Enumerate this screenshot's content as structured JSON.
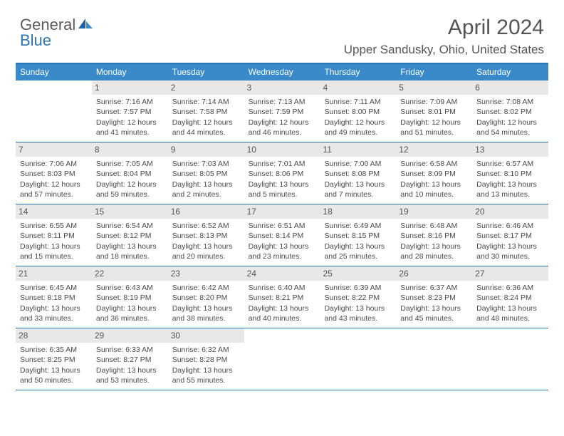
{
  "logo": {
    "part1": "General",
    "part2": "Blue"
  },
  "title": "April 2024",
  "subtitle": "Upper Sandusky, Ohio, United States",
  "colors": {
    "accent": "#2e75b6",
    "header_bg": "#3a8ac9",
    "daynum_bg": "#e8e8e8",
    "text": "#4a4a4a",
    "background": "#ffffff"
  },
  "day_names": [
    "Sunday",
    "Monday",
    "Tuesday",
    "Wednesday",
    "Thursday",
    "Friday",
    "Saturday"
  ],
  "weeks": [
    [
      {
        "n": "",
        "empty": true
      },
      {
        "n": "1",
        "sr": "7:16 AM",
        "ss": "7:57 PM",
        "dl": "12 hours and 41 minutes."
      },
      {
        "n": "2",
        "sr": "7:14 AM",
        "ss": "7:58 PM",
        "dl": "12 hours and 44 minutes."
      },
      {
        "n": "3",
        "sr": "7:13 AM",
        "ss": "7:59 PM",
        "dl": "12 hours and 46 minutes."
      },
      {
        "n": "4",
        "sr": "7:11 AM",
        "ss": "8:00 PM",
        "dl": "12 hours and 49 minutes."
      },
      {
        "n": "5",
        "sr": "7:09 AM",
        "ss": "8:01 PM",
        "dl": "12 hours and 51 minutes."
      },
      {
        "n": "6",
        "sr": "7:08 AM",
        "ss": "8:02 PM",
        "dl": "12 hours and 54 minutes."
      }
    ],
    [
      {
        "n": "7",
        "sr": "7:06 AM",
        "ss": "8:03 PM",
        "dl": "12 hours and 57 minutes."
      },
      {
        "n": "8",
        "sr": "7:05 AM",
        "ss": "8:04 PM",
        "dl": "12 hours and 59 minutes."
      },
      {
        "n": "9",
        "sr": "7:03 AM",
        "ss": "8:05 PM",
        "dl": "13 hours and 2 minutes."
      },
      {
        "n": "10",
        "sr": "7:01 AM",
        "ss": "8:06 PM",
        "dl": "13 hours and 5 minutes."
      },
      {
        "n": "11",
        "sr": "7:00 AM",
        "ss": "8:08 PM",
        "dl": "13 hours and 7 minutes."
      },
      {
        "n": "12",
        "sr": "6:58 AM",
        "ss": "8:09 PM",
        "dl": "13 hours and 10 minutes."
      },
      {
        "n": "13",
        "sr": "6:57 AM",
        "ss": "8:10 PM",
        "dl": "13 hours and 13 minutes."
      }
    ],
    [
      {
        "n": "14",
        "sr": "6:55 AM",
        "ss": "8:11 PM",
        "dl": "13 hours and 15 minutes."
      },
      {
        "n": "15",
        "sr": "6:54 AM",
        "ss": "8:12 PM",
        "dl": "13 hours and 18 minutes."
      },
      {
        "n": "16",
        "sr": "6:52 AM",
        "ss": "8:13 PM",
        "dl": "13 hours and 20 minutes."
      },
      {
        "n": "17",
        "sr": "6:51 AM",
        "ss": "8:14 PM",
        "dl": "13 hours and 23 minutes."
      },
      {
        "n": "18",
        "sr": "6:49 AM",
        "ss": "8:15 PM",
        "dl": "13 hours and 25 minutes."
      },
      {
        "n": "19",
        "sr": "6:48 AM",
        "ss": "8:16 PM",
        "dl": "13 hours and 28 minutes."
      },
      {
        "n": "20",
        "sr": "6:46 AM",
        "ss": "8:17 PM",
        "dl": "13 hours and 30 minutes."
      }
    ],
    [
      {
        "n": "21",
        "sr": "6:45 AM",
        "ss": "8:18 PM",
        "dl": "13 hours and 33 minutes."
      },
      {
        "n": "22",
        "sr": "6:43 AM",
        "ss": "8:19 PM",
        "dl": "13 hours and 36 minutes."
      },
      {
        "n": "23",
        "sr": "6:42 AM",
        "ss": "8:20 PM",
        "dl": "13 hours and 38 minutes."
      },
      {
        "n": "24",
        "sr": "6:40 AM",
        "ss": "8:21 PM",
        "dl": "13 hours and 40 minutes."
      },
      {
        "n": "25",
        "sr": "6:39 AM",
        "ss": "8:22 PM",
        "dl": "13 hours and 43 minutes."
      },
      {
        "n": "26",
        "sr": "6:37 AM",
        "ss": "8:23 PM",
        "dl": "13 hours and 45 minutes."
      },
      {
        "n": "27",
        "sr": "6:36 AM",
        "ss": "8:24 PM",
        "dl": "13 hours and 48 minutes."
      }
    ],
    [
      {
        "n": "28",
        "sr": "6:35 AM",
        "ss": "8:25 PM",
        "dl": "13 hours and 50 minutes."
      },
      {
        "n": "29",
        "sr": "6:33 AM",
        "ss": "8:27 PM",
        "dl": "13 hours and 53 minutes."
      },
      {
        "n": "30",
        "sr": "6:32 AM",
        "ss": "8:28 PM",
        "dl": "13 hours and 55 minutes."
      },
      {
        "n": "",
        "empty": true
      },
      {
        "n": "",
        "empty": true
      },
      {
        "n": "",
        "empty": true
      },
      {
        "n": "",
        "empty": true
      }
    ]
  ],
  "labels": {
    "sunrise": "Sunrise: ",
    "sunset": "Sunset: ",
    "daylight": "Daylight: "
  }
}
